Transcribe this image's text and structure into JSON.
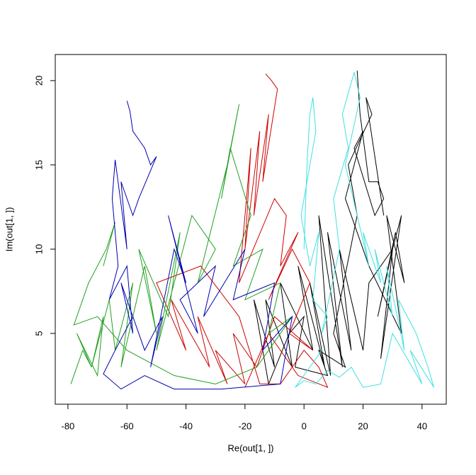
{
  "chart_data": {
    "type": "line",
    "x_label": "Re(out[1, ])",
    "y_label": "Im(out[1, ])",
    "xlim": [
      -84.3,
      48.2
    ],
    "ylim": [
      0.8,
      21.55
    ],
    "xticks": [
      -80,
      -60,
      -40,
      -20,
      0,
      20,
      40
    ],
    "yticks": [
      5,
      10,
      15,
      20
    ],
    "series": [
      {
        "color": "#000000",
        "x": [
          18,
          19,
          22,
          25,
          27,
          24,
          17,
          20,
          14,
          22,
          33,
          28,
          34,
          31,
          25,
          30,
          26,
          33,
          30,
          22,
          20,
          12,
          16,
          8,
          13,
          5,
          9,
          2,
          7,
          -2,
          3,
          -8,
          -4,
          -13,
          -10,
          -17,
          -12,
          -5,
          0,
          -3,
          8,
          5,
          14,
          10,
          18,
          15,
          23,
          21,
          27
        ],
        "values": [
          20.6,
          18,
          14,
          14,
          13,
          12,
          16,
          17,
          13,
          9,
          5,
          12,
          8,
          11,
          6,
          10,
          3.5,
          12,
          10,
          8,
          4,
          10,
          4,
          11,
          3,
          12,
          2.5,
          8,
          3,
          9,
          4,
          8,
          3,
          7,
          3,
          7,
          2,
          5,
          6,
          3,
          2.5,
          4,
          3,
          5,
          12,
          15,
          18,
          19,
          12
        ]
      },
      {
        "color": "#cd0000",
        "x": [
          -13,
          -11,
          -9,
          -14,
          -12,
          -17,
          -15,
          -20,
          -18,
          -22,
          -10,
          -6,
          -8,
          -2,
          -12,
          -4,
          2,
          -5,
          3,
          -10,
          -16,
          -24,
          -20,
          -30,
          -26,
          -36,
          -32,
          -45,
          -40,
          -50,
          -35,
          -22,
          -15,
          -8,
          0,
          5,
          8,
          -2,
          -12,
          -20
        ],
        "values": [
          20.4,
          20,
          19.5,
          14,
          18,
          12,
          17,
          10,
          16,
          8,
          13,
          12,
          9,
          11,
          7,
          10,
          8,
          5,
          4,
          6,
          3,
          5,
          2,
          4,
          2,
          6,
          3,
          7,
          4,
          8,
          9,
          6,
          2,
          2,
          4,
          3,
          1.8,
          2.5,
          5,
          1.8
        ]
      },
      {
        "color": "#22a022",
        "x": [
          -79,
          -75,
          -72,
          -77,
          -70,
          -68,
          -72,
          -66,
          -64,
          -58,
          -62,
          -54,
          -50,
          -56,
          -46,
          -42,
          -50,
          -38,
          -30,
          -36,
          -26,
          -22,
          -28,
          -25,
          -18,
          -24,
          -14,
          -20,
          -8,
          -12,
          -4,
          -16,
          -30,
          -44,
          -60,
          -70,
          -78,
          -73,
          -67,
          -64,
          -68
        ],
        "values": [
          2,
          4,
          3,
          5,
          2.5,
          6,
          3,
          7,
          4,
          8,
          3,
          9,
          5,
          10,
          6,
          11,
          4,
          12,
          10,
          8,
          15,
          18.6,
          13,
          16,
          12,
          9,
          10,
          7,
          8,
          5,
          6,
          3,
          2,
          2.5,
          4,
          6,
          5.5,
          8,
          10,
          11.6,
          9
        ]
      },
      {
        "color": "#0000b0",
        "x": [
          -60,
          -59,
          -58,
          -56,
          -54,
          -52,
          -50,
          -56,
          -58,
          -62,
          -60,
          -64,
          -65,
          -63,
          -66,
          -60,
          -58,
          -62,
          -54,
          -48,
          -52,
          -44,
          -40,
          -46,
          -36,
          -42,
          -30,
          -34,
          -20,
          -24,
          -10,
          -14,
          -4,
          -8,
          -28,
          -44,
          -54,
          -62,
          -68,
          -64,
          -58
        ],
        "values": [
          18.8,
          18.2,
          17,
          16.5,
          16,
          15,
          15.5,
          13,
          12,
          14,
          10,
          15.3,
          13,
          9,
          7,
          9,
          5,
          8,
          4,
          6,
          3,
          10,
          8,
          12,
          5,
          7,
          9,
          6,
          10,
          7,
          8,
          4,
          6,
          2,
          1.7,
          1.7,
          2.5,
          1.7,
          2.6,
          4,
          6
        ]
      },
      {
        "color": "#40e0e0",
        "x": [
          0,
          1,
          2,
          3,
          4,
          1,
          -1,
          2,
          5,
          3,
          8,
          6,
          12,
          10,
          15,
          13,
          17,
          19,
          14,
          18,
          22,
          20,
          26,
          24,
          30,
          28,
          34,
          32,
          38,
          42,
          44,
          36,
          40,
          30,
          26,
          20,
          16,
          12,
          8,
          4,
          0,
          -3,
          2,
          6
        ],
        "values": [
          10,
          15,
          18,
          19,
          17,
          14,
          12,
          9,
          11,
          7,
          6,
          5,
          10,
          13,
          16,
          18,
          20.5,
          19,
          15,
          12,
          9,
          11,
          8,
          10,
          6,
          9,
          4,
          7,
          5,
          3,
          1.8,
          4,
          2,
          5,
          2,
          1.8,
          3,
          2.4,
          2.8,
          2,
          2.2,
          1.8,
          3,
          4
        ]
      }
    ]
  }
}
